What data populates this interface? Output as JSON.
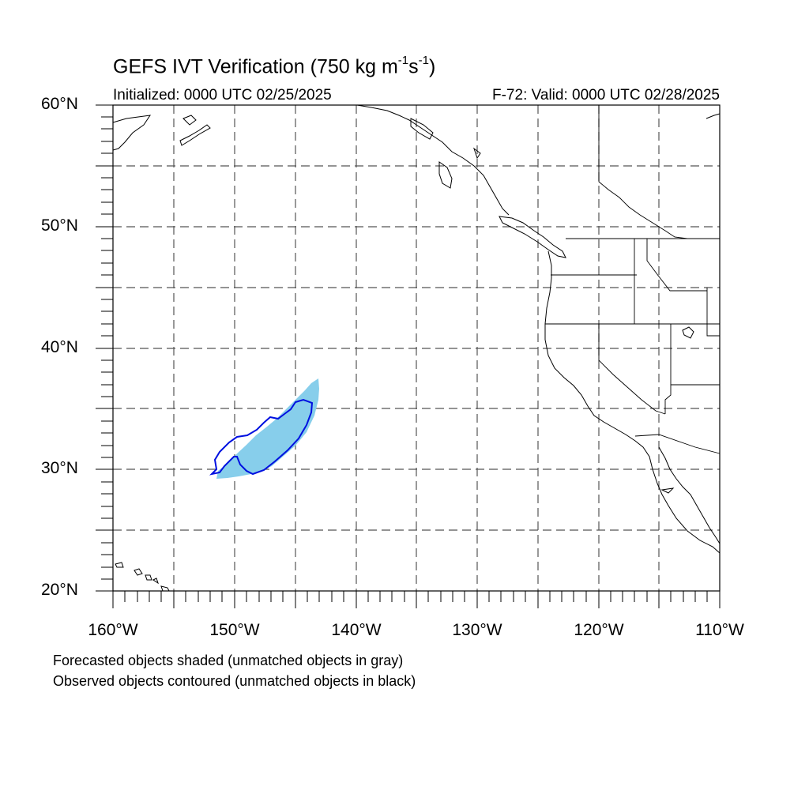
{
  "title_main": "GEFS IVT Verification (750 kg m",
  "title_sup1": "-1",
  "title_mid": "s",
  "title_sup2": "-1",
  "title_end": ")",
  "initialized": "Initialized: 0000 UTC 02/25/2025",
  "valid": "F-72: Valid: 0000 UTC 02/28/2025",
  "lat_labels": [
    "60°N",
    "50°N",
    "40°N",
    "30°N",
    "20°N"
  ],
  "lon_labels": [
    "160°W",
    "150°W",
    "140°W",
    "130°W",
    "120°W",
    "110°W"
  ],
  "footnotes": [
    "Forecasted objects shaded (unmatched objects in gray)",
    "Observed objects contoured (unmatched objects in black)"
  ],
  "colors": {
    "forecast_fill": "#87ceeb",
    "observed_contour": "#0000e0",
    "coastline": "#000000",
    "grid": "#555555"
  }
}
